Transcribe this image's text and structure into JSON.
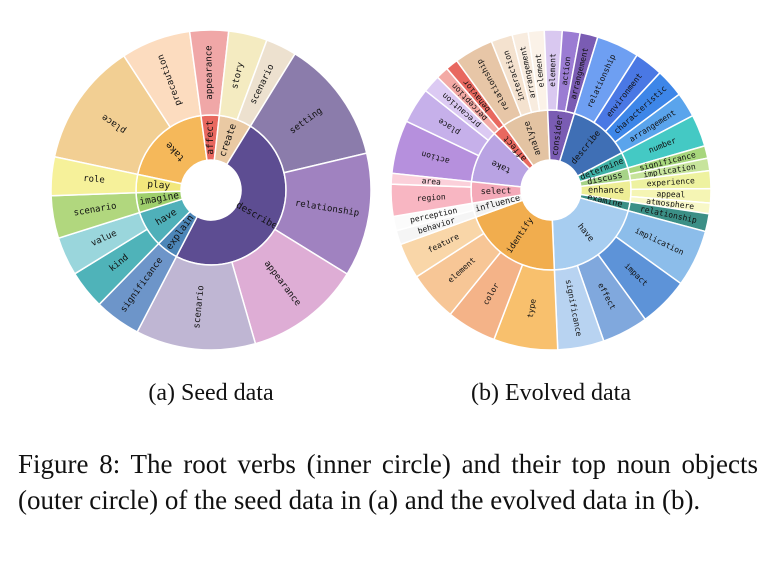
{
  "figure_caption": "Figure 8: The root verbs (inner circle) and their top noun objects (outer circle) of the seed data in (a) and the evolved data in (b).",
  "chart_data": [
    {
      "type": "sunburst",
      "subcaption": "(a) Seed data",
      "title": "",
      "inner_ring": [
        {
          "name": "take",
          "value": 5,
          "color": "#f5b85a"
        },
        {
          "name": "affect",
          "value": 1,
          "color": "#e8685f"
        },
        {
          "name": "create",
          "value": 1.8,
          "color": "#e9c9a3"
        },
        {
          "name": "describe",
          "value": 12.5,
          "color": "#5d4d92"
        },
        {
          "name": "explain",
          "value": 1.2,
          "color": "#4d86b8"
        },
        {
          "name": "have",
          "value": 2,
          "color": "#4fb0b9"
        },
        {
          "name": "imagine",
          "value": 1.1,
          "color": "#9fcf6c"
        },
        {
          "name": "play",
          "value": 1,
          "color": "#f2e77c"
        }
      ],
      "outer_ring": [
        {
          "name": "place",
          "parent": "take",
          "value": 3.2,
          "color": "#f2cf93"
        },
        {
          "name": "precaution",
          "parent": "take",
          "value": 1.8,
          "color": "#fcdcbf"
        },
        {
          "name": "appearance",
          "parent": "affect",
          "value": 1,
          "color": "#f0a7a7"
        },
        {
          "name": "story",
          "parent": "create",
          "value": 1,
          "color": "#f4ebc1"
        },
        {
          "name": "scenario",
          "parent": "create",
          "value": 0.8,
          "color": "#ede1cf"
        },
        {
          "name": "setting",
          "parent": "describe",
          "value": 3.2,
          "color": "#8b7cab"
        },
        {
          "name": "relationship",
          "parent": "describe",
          "value": 3.2,
          "color": "#a082c0"
        },
        {
          "name": "appearance",
          "parent": "describe",
          "value": 3,
          "color": "#deadd5"
        },
        {
          "name": "scenario",
          "parent": "describe",
          "value": 3.1,
          "color": "#bfb6d3"
        },
        {
          "name": "significance",
          "parent": "explain",
          "value": 1.2,
          "color": "#6d95c9"
        },
        {
          "name": "kind",
          "parent": "have",
          "value": 1,
          "color": "#4fb3b9"
        },
        {
          "name": "value",
          "parent": "have",
          "value": 1,
          "color": "#9ad6dc"
        },
        {
          "name": "scenario",
          "parent": "imagine",
          "value": 1.1,
          "color": "#b1d77e"
        },
        {
          "name": "role",
          "parent": "play",
          "value": 1,
          "color": "#f6f19a"
        }
      ]
    },
    {
      "type": "sunburst",
      "subcaption": "(b) Evolved data",
      "title": "",
      "inner_ring": [
        {
          "name": "take",
          "value": 3,
          "color": "#b9a3e3"
        },
        {
          "name": "affect",
          "value": 0.7,
          "color": "#e8685f"
        },
        {
          "name": "analyze",
          "value": 2.6,
          "color": "#e3c3a2"
        },
        {
          "name": "consider",
          "value": 1.5,
          "color": "#7a5cb3"
        },
        {
          "name": "describe",
          "value": 3.5,
          "color": "#3f6fb5"
        },
        {
          "name": "determine",
          "value": 0.9,
          "color": "#3fb1a6"
        },
        {
          "name": "discuss",
          "value": 0.7,
          "color": "#a6d388"
        },
        {
          "name": "enhance",
          "value": 1.2,
          "color": "#eeee96"
        },
        {
          "name": "examine",
          "value": 0.5,
          "color": "#3b8f86"
        },
        {
          "name": "have",
          "value": 5.6,
          "color": "#a7cdf0"
        },
        {
          "name": "identify",
          "value": 5.6,
          "color": "#f1ad4e"
        },
        {
          "name": "influence",
          "value": 0.8,
          "color": "#f2f2f2"
        },
        {
          "name": "select",
          "value": 1.2,
          "color": "#f4a9b8"
        }
      ],
      "outer_ring": [
        {
          "name": "action",
          "parent": "take",
          "value": 1.5,
          "color": "#b690dd"
        },
        {
          "name": "place",
          "parent": "take",
          "value": 1,
          "color": "#c6b0ea"
        },
        {
          "name": "precaution",
          "parent": "take",
          "value": 0.5,
          "color": "#dccaf3"
        },
        {
          "name": "perception",
          "parent": "affect",
          "value": 0.35,
          "color": "#f3aaa5"
        },
        {
          "name": "behavior",
          "parent": "affect",
          "value": 0.35,
          "color": "#e8685f"
        },
        {
          "name": "relationship",
          "parent": "analyze",
          "value": 1.1,
          "color": "#e7c6a7"
        },
        {
          "name": "interaction",
          "parent": "analyze",
          "value": 0.6,
          "color": "#f4e2cf"
        },
        {
          "name": "arrangement",
          "parent": "analyze",
          "value": 0.45,
          "color": "#f8ecdf"
        },
        {
          "name": "element",
          "parent": "analyze",
          "value": 0.45,
          "color": "#fbf2e8"
        },
        {
          "name": "element",
          "parent": "consider",
          "value": 0.5,
          "color": "#d9c8f0"
        },
        {
          "name": "action",
          "parent": "consider",
          "value": 0.5,
          "color": "#9b7cd3"
        },
        {
          "name": "arrangement",
          "parent": "consider",
          "value": 0.5,
          "color": "#7a5cb3"
        },
        {
          "name": "relationship",
          "parent": "describe",
          "value": 1.2,
          "color": "#6e9ff2"
        },
        {
          "name": "environment",
          "parent": "describe",
          "value": 0.8,
          "color": "#4a78e4"
        },
        {
          "name": "characteristic",
          "parent": "describe",
          "value": 0.8,
          "color": "#3d86e8"
        },
        {
          "name": "arrangement",
          "parent": "describe",
          "value": 0.7,
          "color": "#5aa4ec"
        },
        {
          "name": "number",
          "parent": "determine",
          "value": 0.9,
          "color": "#44c9c4"
        },
        {
          "name": "significance",
          "parent": "discuss",
          "value": 0.35,
          "color": "#a7d67c"
        },
        {
          "name": "implication",
          "parent": "discuss",
          "value": 0.35,
          "color": "#c7e49c"
        },
        {
          "name": "experience",
          "parent": "enhance",
          "value": 0.5,
          "color": "#eef2a0"
        },
        {
          "name": "appeal",
          "parent": "enhance",
          "value": 0.4,
          "color": "#f5f5b4"
        },
        {
          "name": "atmosphere",
          "parent": "enhance",
          "value": 0.3,
          "color": "#f8f8c8"
        },
        {
          "name": "relationship",
          "parent": "examine",
          "value": 0.5,
          "color": "#3b8f86"
        },
        {
          "name": "implication",
          "parent": "have",
          "value": 1.6,
          "color": "#8cbdea"
        },
        {
          "name": "impact",
          "parent": "have",
          "value": 1.4,
          "color": "#5d93d8"
        },
        {
          "name": "effect",
          "parent": "have",
          "value": 1.3,
          "color": "#80a8dd"
        },
        {
          "name": "significance",
          "parent": "have",
          "value": 1.3,
          "color": "#b8d3f1"
        },
        {
          "name": "type",
          "parent": "identify",
          "value": 1.8,
          "color": "#f8c06d"
        },
        {
          "name": "color",
          "parent": "identify",
          "value": 1.4,
          "color": "#f4b388"
        },
        {
          "name": "element",
          "parent": "identify",
          "value": 1.4,
          "color": "#f7c696"
        },
        {
          "name": "feature",
          "parent": "identify",
          "value": 1,
          "color": "#f9d6a8"
        },
        {
          "name": "behavior",
          "parent": "influence",
          "value": 0.4,
          "color": "#f5f5f5"
        },
        {
          "name": "perception",
          "parent": "influence",
          "value": 0.4,
          "color": "#fbfbfb"
        },
        {
          "name": "region",
          "parent": "select",
          "value": 0.9,
          "color": "#f8b6c2"
        },
        {
          "name": "area",
          "parent": "select",
          "value": 0.3,
          "color": "#fbd0da"
        }
      ]
    }
  ]
}
